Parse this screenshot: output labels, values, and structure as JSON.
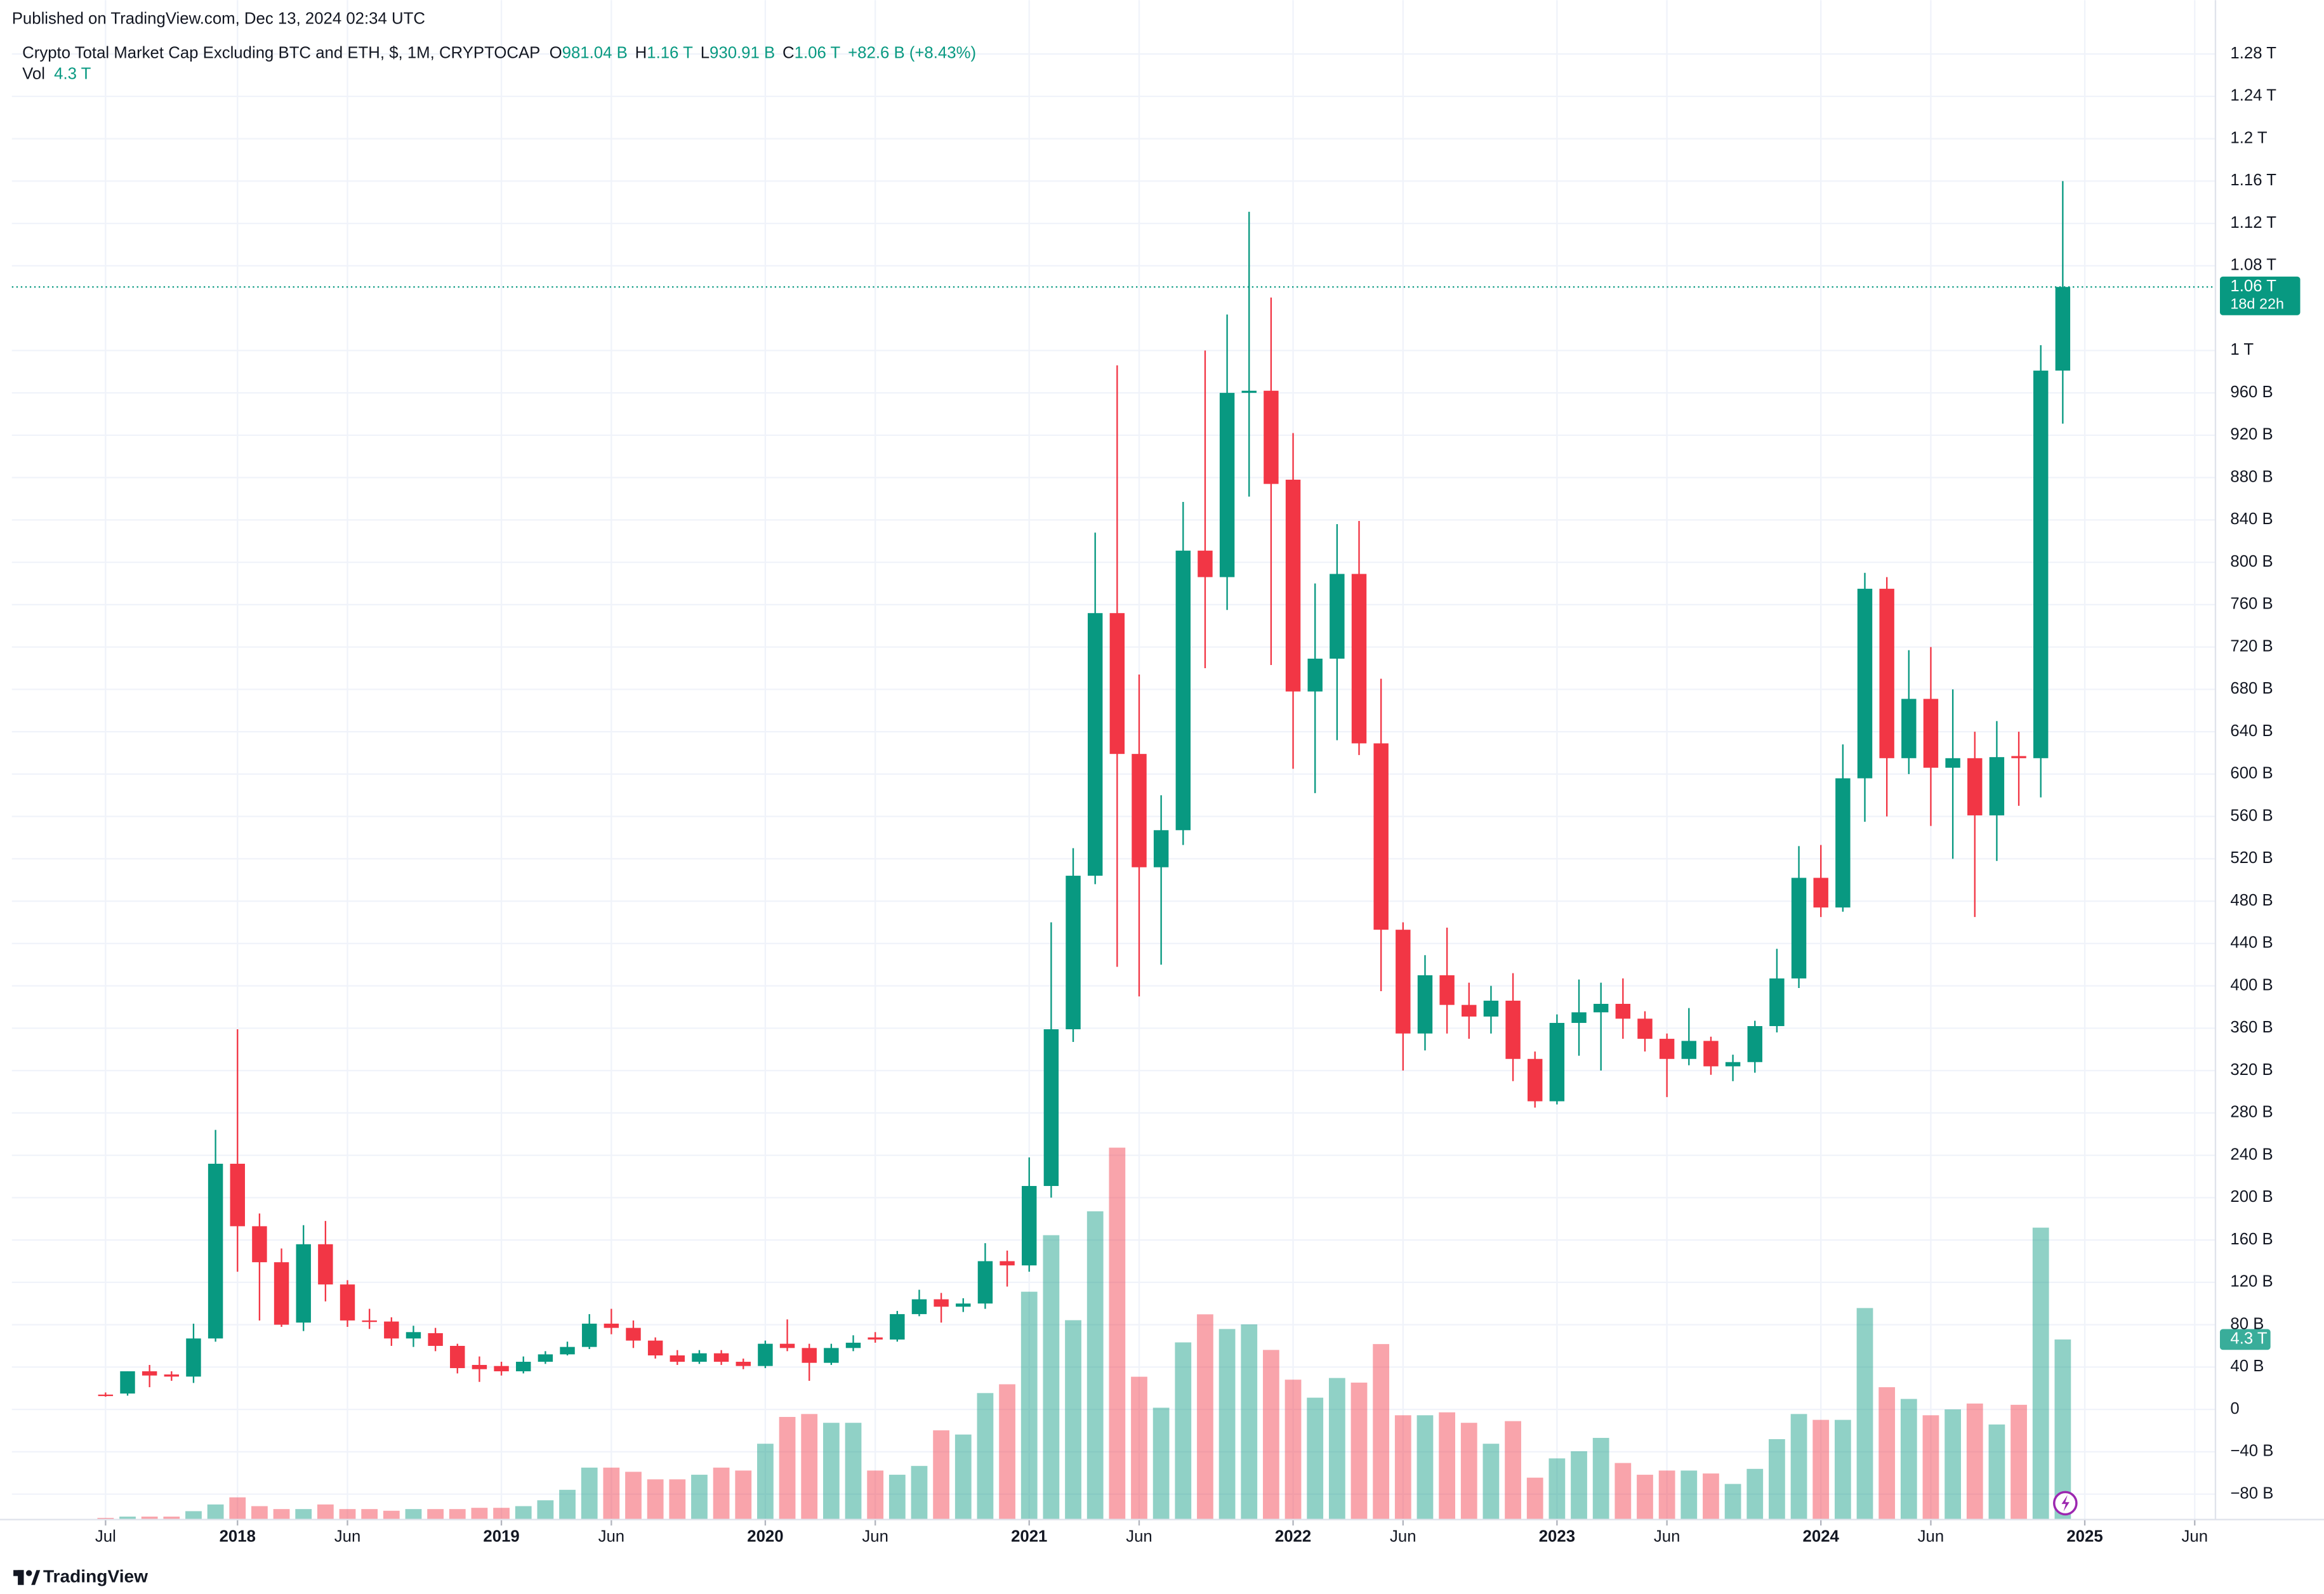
{
  "published": "Published on TradingView.com, Dec 13, 2024 02:34 UTC",
  "brand": "TradingView",
  "chart_data": {
    "type": "candlestick",
    "title": "Crypto Total Market Cap Excluding BTC and ETH, $, 1M, CRYPTOCAP",
    "legend": {
      "open_label": "O",
      "open": "981.04 B",
      "high_label": "H",
      "high": "1.16 T",
      "low_label": "L",
      "low": "930.91 B",
      "close_label": "C",
      "close": "1.06 T",
      "change": "+82.6 B (+8.43%)",
      "volume_label": "Vol",
      "volume": "4.3 T"
    },
    "countdown": "18d 22h",
    "up_color": "#089981",
    "down_color": "#f23645",
    "grid": true,
    "x": [
      "2017-07",
      "2017-08",
      "2017-09",
      "2017-10",
      "2017-11",
      "2017-12",
      "2018-01",
      "2018-02",
      "2018-03",
      "2018-04",
      "2018-05",
      "2018-06",
      "2018-07",
      "2018-08",
      "2018-09",
      "2018-10",
      "2018-11",
      "2018-12",
      "2019-01",
      "2019-02",
      "2019-03",
      "2019-04",
      "2019-05",
      "2019-06",
      "2019-07",
      "2019-08",
      "2019-09",
      "2019-10",
      "2019-11",
      "2019-12",
      "2020-01",
      "2020-02",
      "2020-03",
      "2020-04",
      "2020-05",
      "2020-06",
      "2020-07",
      "2020-08",
      "2020-09",
      "2020-10",
      "2020-11",
      "2020-12",
      "2021-01",
      "2021-02",
      "2021-03",
      "2021-04",
      "2021-05",
      "2021-06",
      "2021-07",
      "2021-08",
      "2021-09",
      "2021-10",
      "2021-11",
      "2021-12",
      "2022-01",
      "2022-02",
      "2022-03",
      "2022-04",
      "2022-05",
      "2022-06",
      "2022-07",
      "2022-08",
      "2022-09",
      "2022-10",
      "2022-11",
      "2022-12",
      "2023-01",
      "2023-02",
      "2023-03",
      "2023-04",
      "2023-05",
      "2023-06",
      "2023-07",
      "2023-08",
      "2023-09",
      "2023-10",
      "2023-11",
      "2023-12",
      "2024-01",
      "2024-02",
      "2024-03",
      "2024-04",
      "2024-05",
      "2024-06",
      "2024-07",
      "2024-08",
      "2024-09",
      "2024-10",
      "2024-11",
      "2024-12"
    ],
    "open": [
      14,
      15,
      36,
      33,
      31,
      67,
      232,
      173,
      139,
      82,
      156,
      118,
      84,
      83,
      67,
      72,
      60,
      42,
      41,
      36,
      45,
      52,
      59,
      81,
      77,
      65,
      51,
      45,
      53,
      45,
      41,
      62,
      58,
      44,
      58,
      68,
      66,
      90,
      104,
      97,
      100,
      140,
      136,
      211,
      359,
      504,
      752,
      619,
      512,
      547,
      811,
      786,
      960,
      962,
      878,
      678,
      709,
      789,
      629,
      453,
      355,
      410,
      382,
      371,
      386,
      331,
      291,
      365,
      375,
      383,
      369,
      350,
      331,
      348,
      324,
      328,
      362,
      407,
      502,
      474,
      596,
      775,
      615,
      671,
      606,
      615,
      561,
      617,
      615,
      981.04
    ],
    "high": [
      16,
      36,
      42,
      36,
      81,
      264,
      359,
      185,
      152,
      174,
      178,
      122,
      95,
      87,
      79,
      77,
      62,
      50,
      45,
      50,
      55,
      64,
      90,
      95,
      84,
      68,
      56,
      56,
      56,
      48,
      65,
      85,
      62,
      62,
      70,
      73,
      93,
      113,
      110,
      105,
      157,
      150,
      238,
      460,
      530,
      828,
      986,
      694,
      580,
      857,
      1000,
      1034,
      1131,
      1050,
      922,
      780,
      836,
      839,
      690,
      460,
      429,
      455,
      403,
      400,
      412,
      338,
      373,
      406,
      403,
      407,
      376,
      355,
      379,
      352,
      335,
      367,
      435,
      532,
      533,
      628,
      790,
      786,
      717,
      720,
      680,
      640,
      650,
      640,
      1005,
      1160
    ],
    "low": [
      12,
      13,
      21,
      27,
      25,
      64,
      130,
      84,
      78,
      74,
      102,
      78,
      76,
      60,
      59,
      55,
      34,
      26,
      32,
      34,
      43,
      51,
      57,
      71,
      58,
      48,
      42,
      43,
      42,
      38,
      39,
      55,
      27,
      42,
      55,
      63,
      64,
      88,
      82,
      92,
      95,
      116,
      130,
      200,
      347,
      496,
      418,
      390,
      420,
      533,
      700,
      755,
      862,
      703,
      605,
      582,
      632,
      618,
      395,
      320,
      339,
      355,
      350,
      355,
      310,
      285,
      288,
      334,
      320,
      350,
      338,
      295,
      325,
      316,
      310,
      318,
      356,
      398,
      465,
      470,
      555,
      560,
      600,
      551,
      520,
      465,
      518,
      570,
      578,
      930.91
    ],
    "close": [
      13,
      36,
      32,
      31,
      67,
      232,
      173,
      139,
      80,
      156,
      118,
      84,
      83,
      67,
      73,
      60,
      39,
      38,
      36,
      45,
      52,
      59,
      81,
      77,
      65,
      51,
      45,
      53,
      45,
      41,
      62,
      58,
      44,
      58,
      63,
      66,
      90,
      104,
      97,
      100,
      140,
      136,
      211,
      359,
      504,
      752,
      619,
      512,
      547,
      811,
      786,
      960,
      962,
      874,
      678,
      709,
      789,
      629,
      453,
      355,
      410,
      382,
      371,
      386,
      331,
      291,
      365,
      375,
      383,
      369,
      350,
      331,
      348,
      324,
      328,
      362,
      407,
      502,
      474,
      596,
      775,
      615,
      671,
      606,
      615,
      561,
      616,
      615,
      981,
      1060
    ],
    "volume": [
      0.04,
      0.07,
      0.07,
      0.07,
      0.2,
      0.36,
      0.53,
      0.32,
      0.25,
      0.25,
      0.36,
      0.25,
      0.25,
      0.21,
      0.25,
      0.25,
      0.25,
      0.28,
      0.28,
      0.32,
      0.46,
      0.71,
      1.24,
      1.24,
      1.14,
      0.96,
      0.96,
      1.07,
      1.24,
      1.17,
      1.81,
      2.45,
      2.52,
      2.31,
      2.31,
      1.17,
      1.07,
      1.28,
      2.13,
      2.03,
      3.02,
      3.23,
      5.44,
      6.79,
      4.76,
      7.36,
      8.88,
      3.41,
      2.67,
      4.23,
      4.9,
      4.55,
      4.66,
      4.05,
      3.34,
      2.91,
      3.38,
      3.27,
      4.19,
      2.49,
      2.49,
      2.56,
      2.31,
      1.81,
      2.35,
      1.0,
      1.46,
      1.63,
      1.95,
      1.35,
      1.07,
      1.17,
      1.17,
      1.1,
      0.85,
      1.21,
      1.92,
      2.52,
      2.38,
      2.38,
      5.05,
      3.16,
      2.88,
      2.49,
      2.63,
      2.77,
      2.27,
      2.74,
      6.97,
      4.3
    ],
    "ylim": [
      -104,
      1300
    ],
    "yticks": [
      {
        "value": 1280,
        "label": "1.28 T"
      },
      {
        "value": 1240,
        "label": "1.24 T"
      },
      {
        "value": 1200,
        "label": "1.2 T"
      },
      {
        "value": 1160,
        "label": "1.16 T"
      },
      {
        "value": 1120,
        "label": "1.12 T"
      },
      {
        "value": 1080,
        "label": "1.08 T"
      },
      {
        "value": 1000,
        "label": "1 T"
      },
      {
        "value": 960,
        "label": "960 B"
      },
      {
        "value": 920,
        "label": "920 B"
      },
      {
        "value": 880,
        "label": "880 B"
      },
      {
        "value": 840,
        "label": "840 B"
      },
      {
        "value": 800,
        "label": "800 B"
      },
      {
        "value": 760,
        "label": "760 B"
      },
      {
        "value": 720,
        "label": "720 B"
      },
      {
        "value": 680,
        "label": "680 B"
      },
      {
        "value": 640,
        "label": "640 B"
      },
      {
        "value": 600,
        "label": "600 B"
      },
      {
        "value": 560,
        "label": "560 B"
      },
      {
        "value": 520,
        "label": "520 B"
      },
      {
        "value": 480,
        "label": "480 B"
      },
      {
        "value": 440,
        "label": "440 B"
      },
      {
        "value": 400,
        "label": "400 B"
      },
      {
        "value": 360,
        "label": "360 B"
      },
      {
        "value": 320,
        "label": "320 B"
      },
      {
        "value": 280,
        "label": "280 B"
      },
      {
        "value": 240,
        "label": "240 B"
      },
      {
        "value": 200,
        "label": "200 B"
      },
      {
        "value": 160,
        "label": "160 B"
      },
      {
        "value": 120,
        "label": "120 B"
      },
      {
        "value": 80,
        "label": "80 B"
      },
      {
        "value": 40,
        "label": "40 B"
      },
      0,
      {
        "value": -40,
        "label": "−40 B"
      },
      {
        "value": -80,
        "label": "−80 B"
      }
    ],
    "volume_ylim": [
      0,
      35.5
    ],
    "xticks": [
      {
        "value": "2017-07",
        "label": "Jul"
      },
      {
        "value": "2018-01",
        "label": "2018"
      },
      {
        "value": "2018-06",
        "label": "Jun"
      },
      {
        "value": "2019-01",
        "label": "2019"
      },
      {
        "value": "2019-06",
        "label": "Jun"
      },
      {
        "value": "2020-01",
        "label": "2020"
      },
      {
        "value": "2020-06",
        "label": "Jun"
      },
      {
        "value": "2021-01",
        "label": "2021"
      },
      {
        "value": "2021-06",
        "label": "Jun"
      },
      {
        "value": "2022-01",
        "label": "2022"
      },
      {
        "value": "2022-06",
        "label": "Jun"
      },
      {
        "value": "2023-01",
        "label": "2023"
      },
      {
        "value": "2023-06",
        "label": "Jun"
      },
      {
        "value": "2024-01",
        "label": "2024"
      },
      {
        "value": "2024-06",
        "label": "Jun"
      },
      {
        "value": "2025-01",
        "label": "2025"
      },
      {
        "value": "2025-06",
        "label": "Jun"
      }
    ]
  }
}
